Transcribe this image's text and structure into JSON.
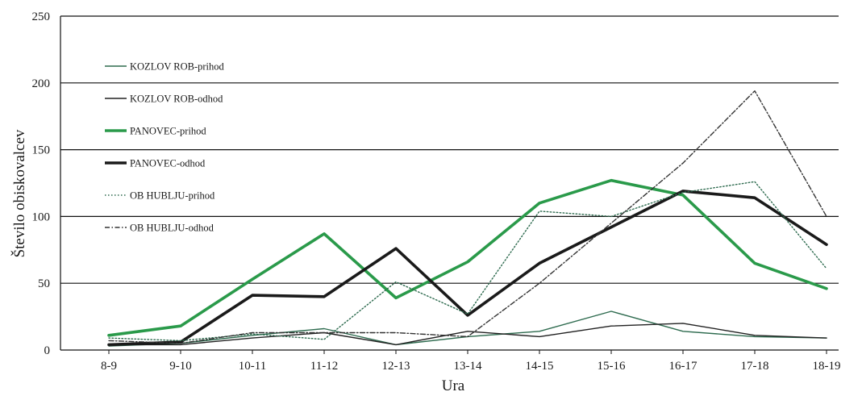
{
  "chart_data": {
    "type": "line",
    "xlabel": "Ura",
    "ylabel": "Število obiskovalcev",
    "categories": [
      "8-9",
      "9-10",
      "10-11",
      "11-12",
      "12-13",
      "13-14",
      "14-15",
      "15-16",
      "16-17",
      "17-18",
      "18-19"
    ],
    "ylim": [
      0,
      250
    ],
    "yticks": [
      0,
      50,
      100,
      150,
      200,
      250
    ],
    "grid": "horizontal",
    "legend_position": "left-inside",
    "series": [
      {
        "name": "KOZLOV RОB-prihod",
        "color": "#2e6b4f",
        "style": "solid-thin",
        "values": [
          3,
          5,
          11,
          16,
          4,
          10,
          14,
          29,
          14,
          10,
          9
        ]
      },
      {
        "name": "KOZLOV RОB-odhod",
        "color": "#222222",
        "style": "solid-thin",
        "values": [
          4,
          4,
          9,
          13,
          4,
          14,
          10,
          18,
          20,
          11,
          9
        ]
      },
      {
        "name": "PANOVEC-prihod",
        "color": "#2a9a4a",
        "style": "solid-thick",
        "values": [
          11,
          18,
          53,
          87,
          39,
          66,
          110,
          127,
          116,
          65,
          46
        ]
      },
      {
        "name": "PANOVEC-odhod",
        "color": "#1a1a1a",
        "style": "solid-thick",
        "values": [
          4,
          6,
          41,
          40,
          76,
          26,
          65,
          92,
          119,
          114,
          79
        ]
      },
      {
        "name": "OB HUBLJU-prihod",
        "color": "#2e6b4f",
        "style": "dotted",
        "values": [
          9,
          7,
          12,
          8,
          51,
          27,
          104,
          100,
          118,
          126,
          61
        ]
      },
      {
        "name": "OB HUBLJU-odhod",
        "color": "#333333",
        "style": "dash-dot",
        "values": [
          7,
          5,
          13,
          13,
          13,
          10,
          50,
          95,
          140,
          194,
          100
        ]
      }
    ]
  }
}
